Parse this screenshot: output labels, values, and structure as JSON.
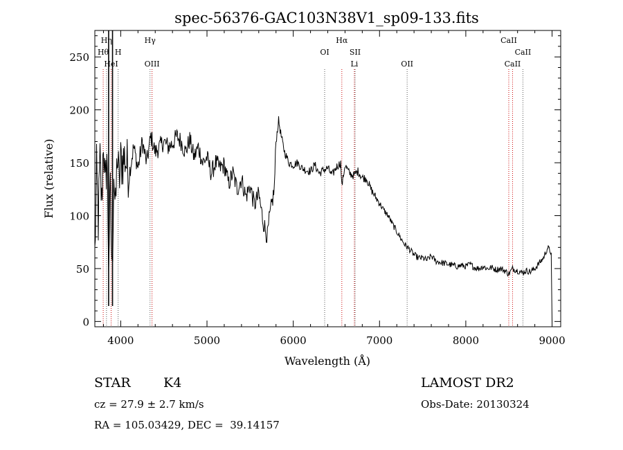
{
  "chart_data": {
    "type": "line",
    "title": "spec-56376-GAC103N38V1_sp09-133.fits",
    "xlabel": "Wavelength (Å)",
    "ylabel": "Flux (relative)",
    "xlim": [
      3700,
      9100
    ],
    "ylim": [
      -5,
      275
    ],
    "x_ticks": [
      4000,
      5000,
      6000,
      7000,
      8000,
      9000
    ],
    "y_ticks": [
      0,
      50,
      100,
      150,
      200,
      250
    ],
    "x_tick_labels": [
      "4000",
      "5000",
      "6000",
      "7000",
      "8000",
      "9000"
    ],
    "y_tick_labels": [
      "0",
      "50",
      "100",
      "150",
      "200",
      "250"
    ],
    "series": [
      {
        "name": "flux",
        "x": [
          3700,
          3720,
          3740,
          3760,
          3780,
          3800,
          3820,
          3840,
          3860,
          3880,
          3900,
          3920,
          3940,
          3960,
          3980,
          4000,
          4050,
          4100,
          4150,
          4200,
          4250,
          4300,
          4350,
          4400,
          4450,
          4500,
          4550,
          4600,
          4650,
          4700,
          4750,
          4800,
          4850,
          4900,
          4950,
          5000,
          5050,
          5100,
          5150,
          5200,
          5250,
          5300,
          5350,
          5400,
          5450,
          5500,
          5550,
          5600,
          5650,
          5700,
          5720,
          5750,
          5780,
          5800,
          5830,
          5860,
          5900,
          5950,
          6000,
          6050,
          6100,
          6150,
          6200,
          6250,
          6300,
          6350,
          6400,
          6450,
          6500,
          6550,
          6563,
          6600,
          6650,
          6700,
          6750,
          6800,
          6850,
          6900,
          6950,
          7000,
          7050,
          7100,
          7150,
          7200,
          7250,
          7300,
          7350,
          7400,
          7450,
          7500,
          7550,
          7600,
          7650,
          7700,
          7750,
          7800,
          7850,
          7900,
          7950,
          8000,
          8050,
          8100,
          8150,
          8200,
          8250,
          8300,
          8350,
          8400,
          8450,
          8500,
          8542,
          8600,
          8650,
          8700,
          8750,
          8800,
          8850,
          8900,
          8950,
          8990,
          9000
        ],
        "y": [
          62,
          140,
          95,
          150,
          110,
          175,
          120,
          160,
          60,
          120,
          40,
          145,
          100,
          160,
          130,
          150,
          155,
          140,
          165,
          145,
          170,
          150,
          175,
          160,
          165,
          170,
          165,
          168,
          175,
          170,
          160,
          172,
          155,
          165,
          150,
          155,
          140,
          150,
          145,
          148,
          130,
          140,
          125,
          135,
          118,
          128,
          110,
          120,
          95,
          80,
          95,
          110,
          125,
          170,
          190,
          175,
          160,
          150,
          148,
          150,
          145,
          143,
          142,
          148,
          140,
          143,
          145,
          138,
          146,
          150,
          128,
          148,
          140,
          138,
          142,
          136,
          135,
          125,
          118,
          112,
          105,
          100,
          92,
          85,
          78,
          72,
          68,
          63,
          60,
          60,
          58,
          62,
          57,
          56,
          55,
          54,
          53,
          52,
          53,
          52,
          54,
          51,
          50,
          52,
          50,
          51,
          49,
          50,
          48,
          45,
          50,
          48,
          46,
          48,
          47,
          50,
          55,
          60,
          70,
          65,
          0
        ]
      }
    ],
    "spectral_lines": [
      {
        "label": "Hη",
        "wavelength": 3835,
        "row": 1
      },
      {
        "label": "Hθ",
        "wavelength": 3797,
        "row": 2
      },
      {
        "label": "H",
        "wavelength": 3970,
        "row": 2
      },
      {
        "label": "HeI",
        "wavelength": 3889,
        "row": 3
      },
      {
        "label": "Hγ",
        "wavelength": 4340,
        "row": 1
      },
      {
        "label": "OIII",
        "wavelength": 4363,
        "row": 3
      },
      {
        "label": "OI",
        "wavelength": 6364,
        "row": 2
      },
      {
        "label": "Hα",
        "wavelength": 6563,
        "row": 1
      },
      {
        "label": "SII",
        "wavelength": 6717,
        "row": 2
      },
      {
        "label": "Li",
        "wavelength": 6708,
        "row": 3
      },
      {
        "label": "OII",
        "wavelength": 7320,
        "row": 3
      },
      {
        "label": "CaII",
        "wavelength": 8498,
        "row": 1
      },
      {
        "label": "CaII",
        "wavelength": 8662,
        "row": 2
      },
      {
        "label": "CaII",
        "wavelength": 8542,
        "row": 3
      }
    ]
  },
  "info": {
    "object_class": "STAR",
    "subclass": "K4",
    "survey": "LAMOST DR2",
    "cz": "cz = 27.9 ± 2.7 km/s",
    "obs_date": "Obs-Date: 20130324",
    "coords": "RA = 105.03429, DEC =  39.14157"
  }
}
